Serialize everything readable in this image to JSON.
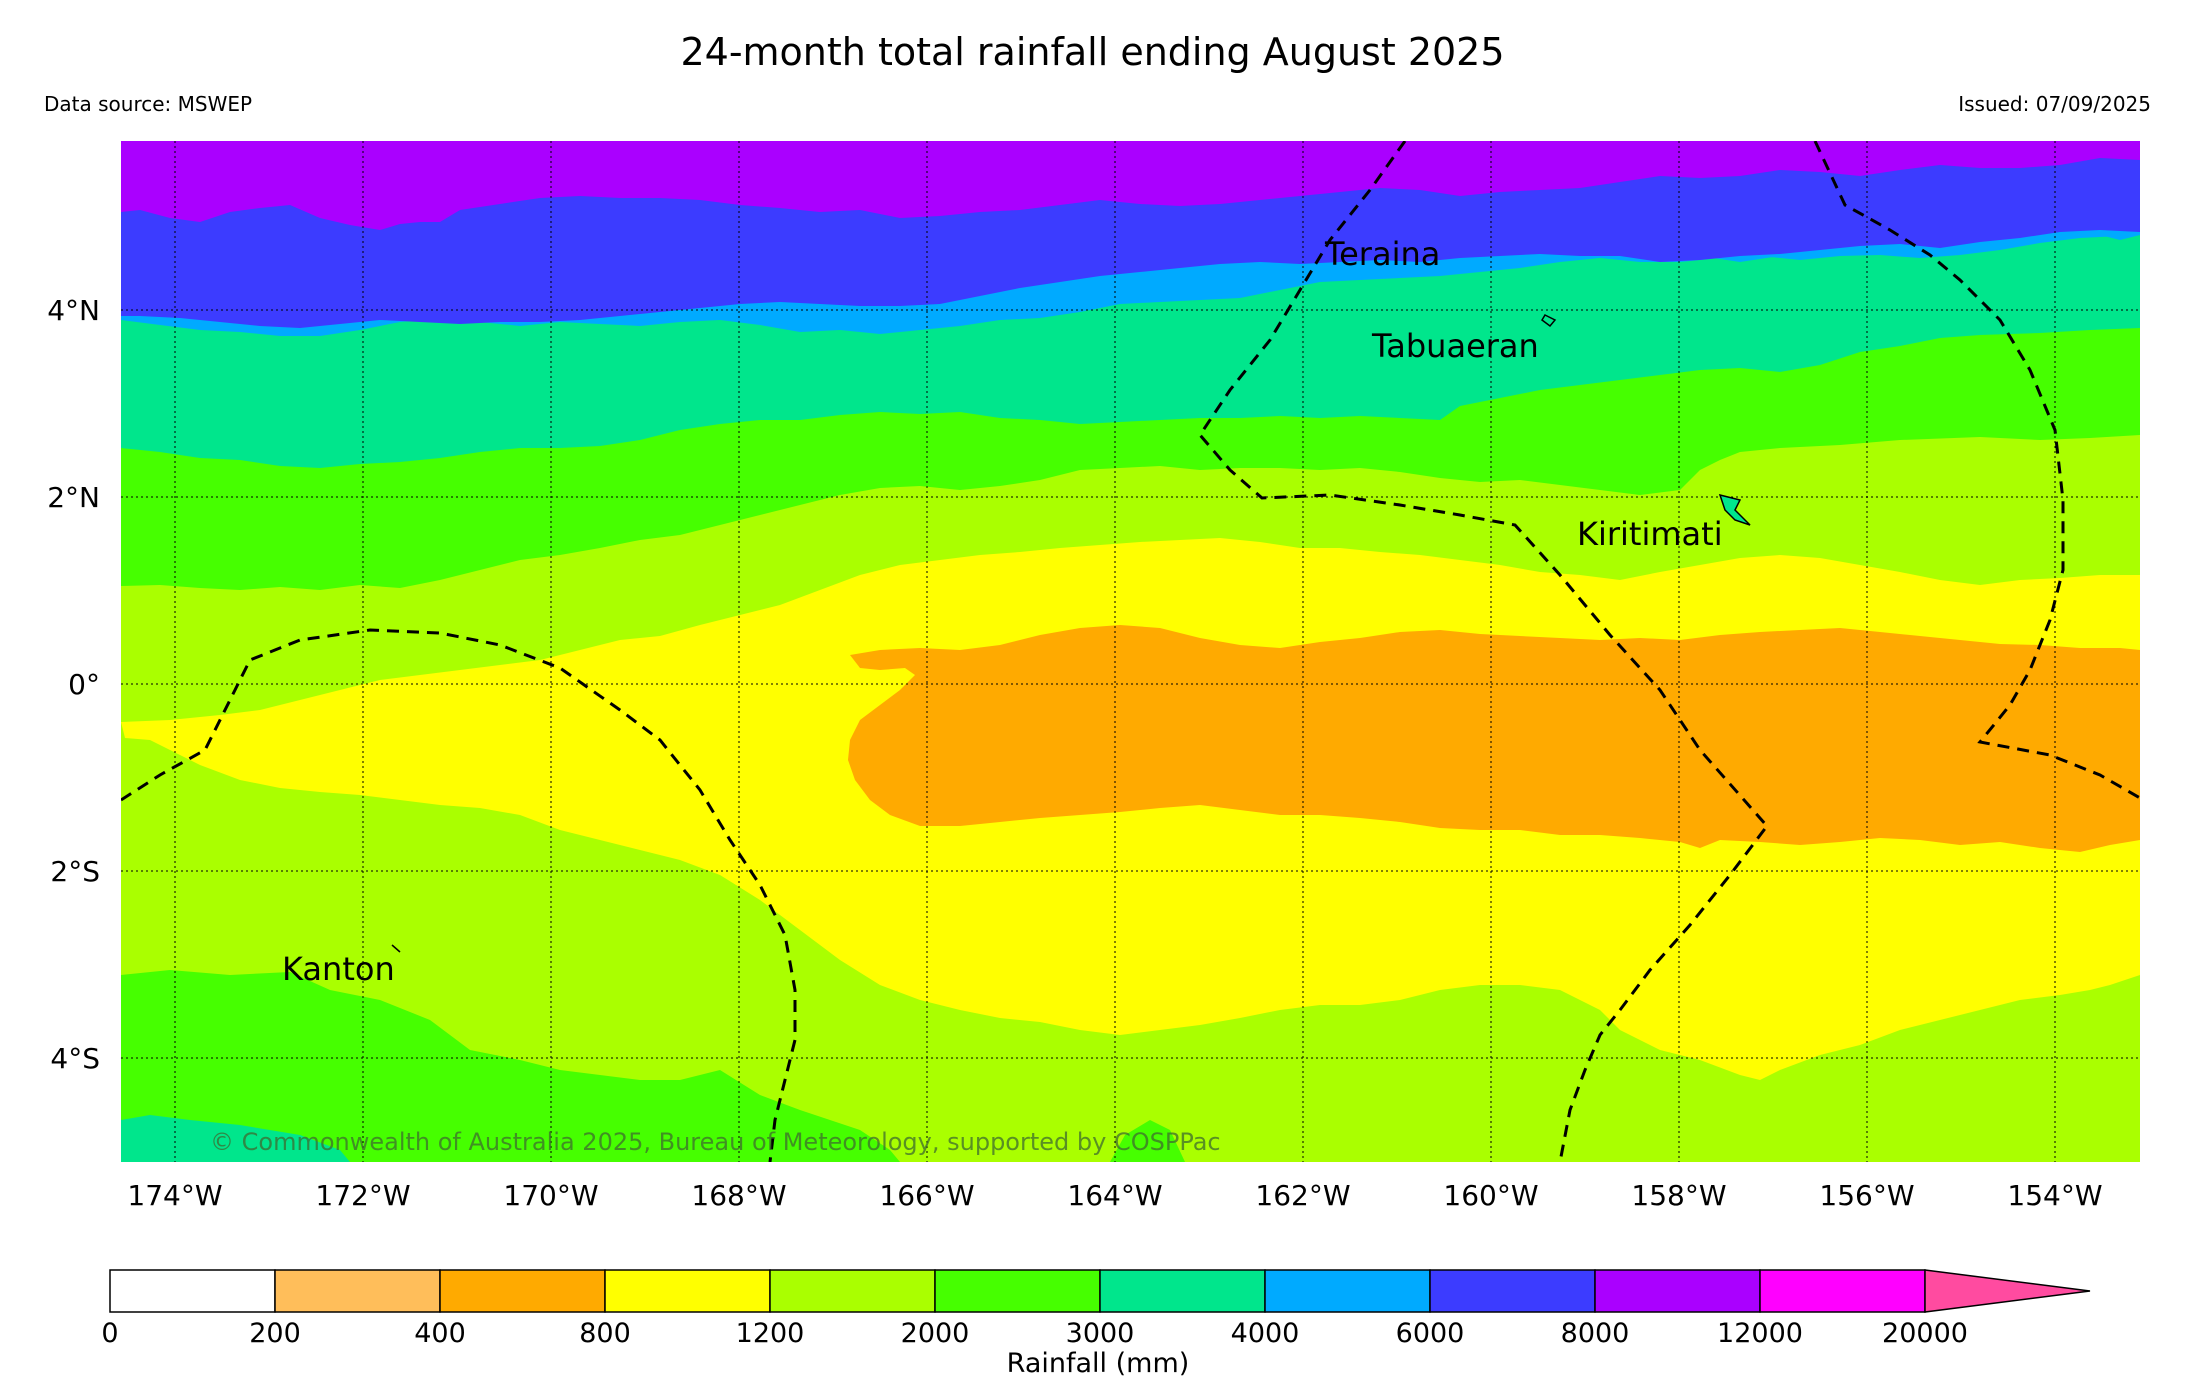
{
  "title": "24-month total rainfall ending August 2025",
  "data_source": "Data source: MSWEP",
  "issued": "Issued: 07/09/2025",
  "copyright": "© Commonwealth of Australia 2025, Bureau of Meteorology, supported by COSPPac",
  "lat_labels": [
    "4°N",
    "2°N",
    "0°",
    "2°S",
    "4°S"
  ],
  "lon_labels": [
    "174°W",
    "172°W",
    "170°W",
    "168°W",
    "166°W",
    "164°W",
    "162°W",
    "160°W",
    "158°W",
    "156°W",
    "154°W"
  ],
  "places": {
    "teraina": "Teraina",
    "tabuaeran": "Tabuaeran",
    "kiritimati": "Kiritimati",
    "kanton": "Kanton"
  },
  "colorbar": {
    "label": "Rainfall (mm)",
    "ticks": [
      "0",
      "200",
      "400",
      "800",
      "1200",
      "2000",
      "3000",
      "4000",
      "6000",
      "8000",
      "12000",
      "20000"
    ],
    "colors": [
      "#ffffff",
      "#ffbe5a",
      "#ffaa00",
      "#ffff00",
      "#aaff00",
      "#46ff00",
      "#00e68c",
      "#00aaff",
      "#3c3cff",
      "#aa00ff",
      "#ff00ff",
      "#ff4ba0"
    ]
  }
}
